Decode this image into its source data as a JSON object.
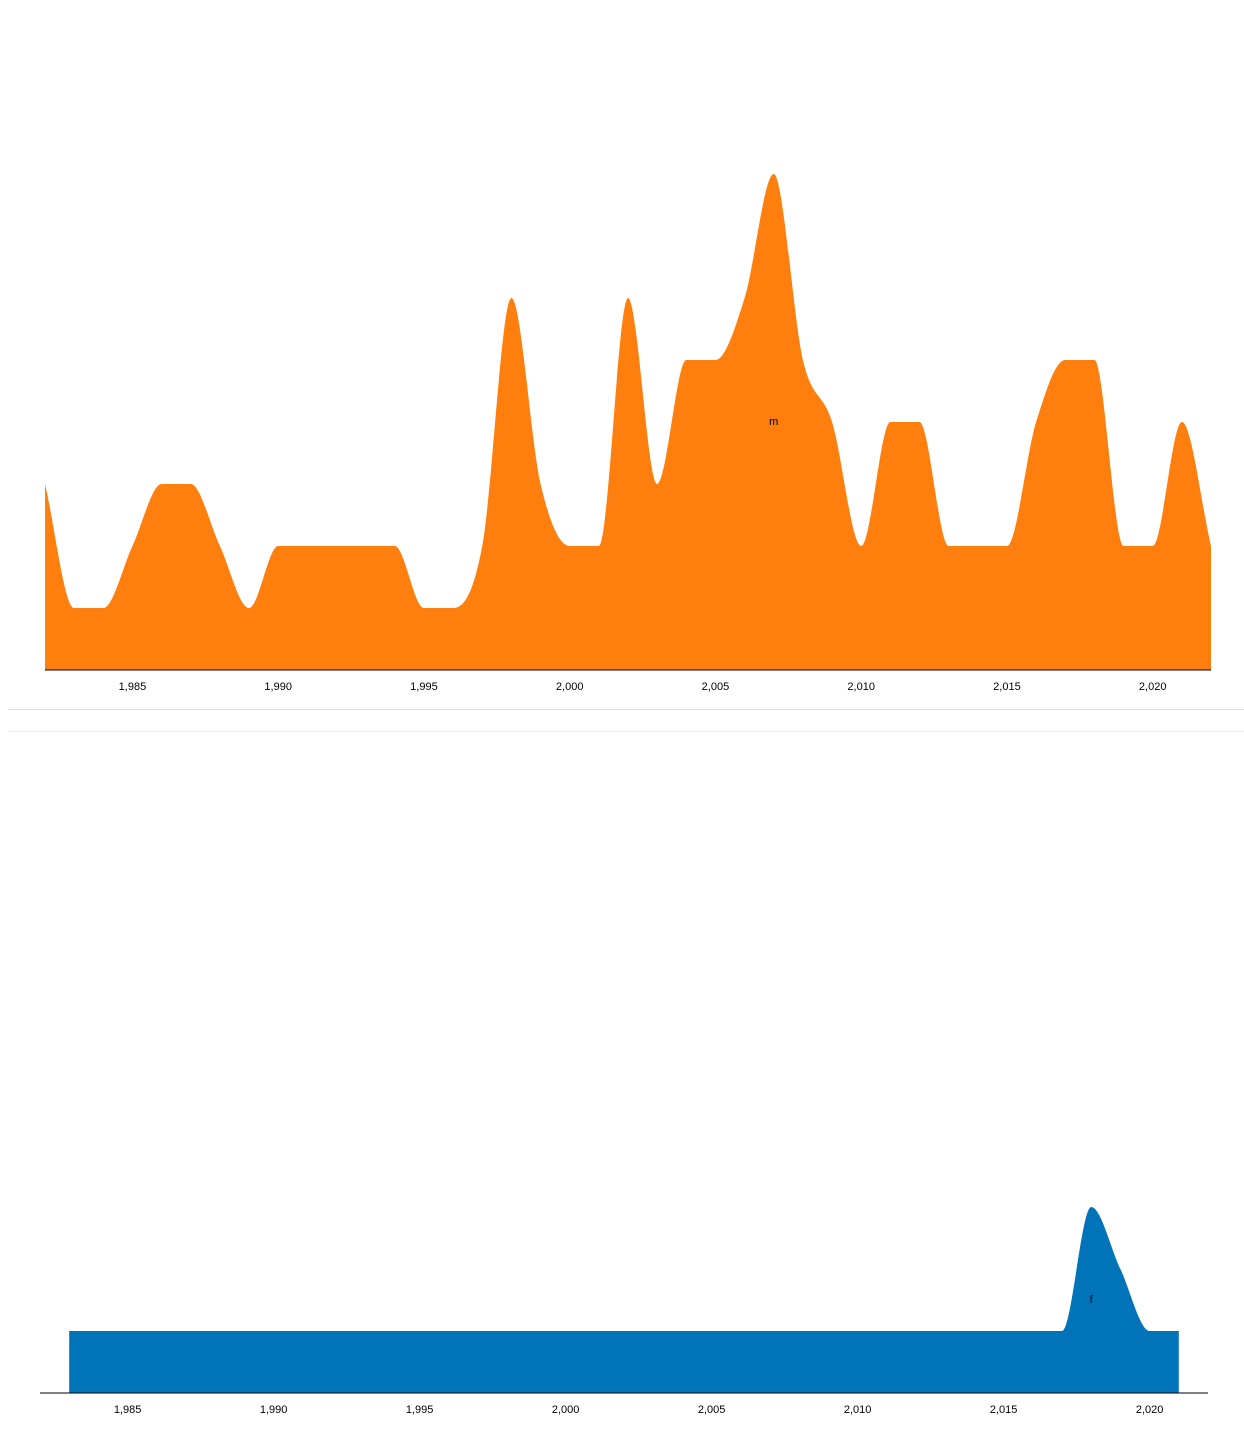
{
  "chart_data": [
    {
      "type": "area",
      "x": [
        1982,
        1983,
        1984,
        1985,
        1986,
        1987,
        1988,
        1989,
        1990,
        1991,
        1992,
        1993,
        1994,
        1995,
        1996,
        1997,
        1998,
        1999,
        2000,
        2001,
        2002,
        2003,
        2004,
        2005,
        2006,
        2007,
        2008,
        2009,
        2010,
        2011,
        2012,
        2013,
        2014,
        2015,
        2016,
        2017,
        2018,
        2019,
        2020,
        2021,
        2022
      ],
      "series": [
        {
          "name": "m",
          "color": "#ff7f0e",
          "values": [
            3,
            1,
            1,
            2,
            3,
            3,
            2,
            1,
            2,
            2,
            2,
            2,
            2,
            1,
            1,
            2,
            6,
            3,
            2,
            2,
            6,
            3,
            5,
            5,
            6,
            8,
            5,
            4,
            2,
            4,
            4,
            2,
            2,
            2,
            4,
            5,
            5,
            2,
            2,
            4,
            2
          ]
        }
      ],
      "xlim": [
        1982,
        2022
      ],
      "xticks": [
        {
          "value": 1985,
          "label": "1,985"
        },
        {
          "value": 1990,
          "label": "1,990"
        },
        {
          "value": 1995,
          "label": "1,995"
        },
        {
          "value": 2000,
          "label": "2,000"
        },
        {
          "value": 2005,
          "label": "2,005"
        },
        {
          "value": 2010,
          "label": "2,010"
        },
        {
          "value": 2015,
          "label": "2,015"
        },
        {
          "value": 2020,
          "label": "2,020"
        }
      ],
      "ylim": [
        0,
        10
      ]
    },
    {
      "type": "area",
      "x": [
        1983,
        1984,
        1985,
        1986,
        1987,
        1988,
        1989,
        1990,
        1991,
        1992,
        1993,
        1994,
        1995,
        1996,
        1997,
        1998,
        1999,
        2000,
        2001,
        2002,
        2003,
        2004,
        2005,
        2006,
        2007,
        2008,
        2009,
        2010,
        2011,
        2012,
        2013,
        2014,
        2015,
        2016,
        2017,
        2018,
        2019,
        2020,
        2021
      ],
      "series": [
        {
          "name": "f",
          "color": "#0173b9",
          "values": [
            1,
            1,
            1,
            1,
            1,
            1,
            1,
            1,
            1,
            1,
            1,
            1,
            1,
            1,
            1,
            1,
            1,
            1,
            1,
            1,
            1,
            1,
            1,
            1,
            1,
            1,
            1,
            1,
            1,
            1,
            1,
            1,
            1,
            1,
            1,
            3,
            2,
            1,
            1
          ]
        }
      ],
      "xlim": [
        1982,
        2022
      ],
      "xticks": [
        {
          "value": 1985,
          "label": "1,985"
        },
        {
          "value": 1990,
          "label": "1,990"
        },
        {
          "value": 1995,
          "label": "1,995"
        },
        {
          "value": 2000,
          "label": "2,000"
        },
        {
          "value": 2005,
          "label": "2,005"
        },
        {
          "value": 2010,
          "label": "2,010"
        },
        {
          "value": 2015,
          "label": "2,015"
        },
        {
          "value": 2020,
          "label": "2,020"
        }
      ],
      "ylim": [
        0,
        10
      ]
    }
  ]
}
